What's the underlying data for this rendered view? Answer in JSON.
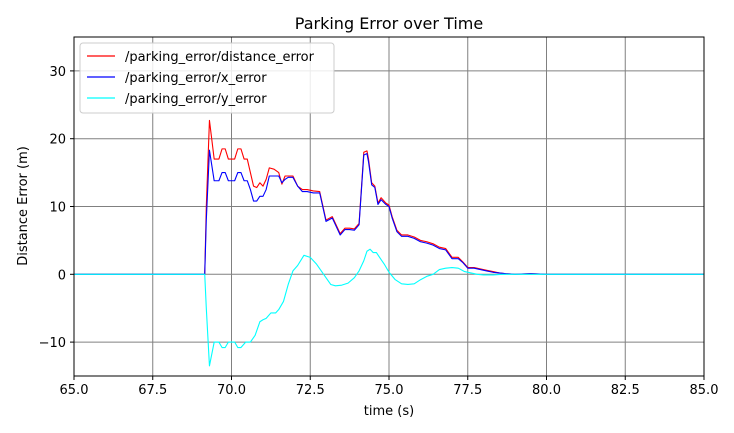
{
  "chart_data": {
    "type": "line",
    "title": "Parking Error over Time",
    "xlabel": "time (s)",
    "ylabel": "Distance Error (m)",
    "xlim": [
      65.0,
      85.0
    ],
    "ylim": [
      -15,
      35
    ],
    "xticks": [
      65.0,
      67.5,
      70.0,
      72.5,
      75.0,
      77.5,
      80.0,
      82.5,
      85.0
    ],
    "xtick_labels": [
      "65.0",
      "67.5",
      "70.0",
      "72.5",
      "75.0",
      "77.5",
      "80.0",
      "82.5",
      "85.0"
    ],
    "yticks": [
      -10,
      0,
      10,
      20,
      30
    ],
    "ytick_labels": [
      "−10",
      "0",
      "10",
      "20",
      "30"
    ],
    "grid": true,
    "legend_position": "top-left",
    "series": [
      {
        "name": "/parking_error/distance_error",
        "color": "#ff0000",
        "x": [
          65.0,
          69.15,
          69.2,
          69.3,
          69.45,
          69.6,
          69.7,
          69.8,
          69.9,
          70.0,
          70.1,
          70.2,
          70.3,
          70.4,
          70.5,
          70.6,
          70.7,
          70.8,
          70.9,
          71.0,
          71.1,
          71.2,
          71.35,
          71.5,
          71.6,
          71.7,
          71.8,
          71.95,
          72.1,
          72.25,
          72.4,
          72.6,
          72.8,
          73.0,
          73.2,
          73.3,
          73.45,
          73.6,
          73.75,
          73.9,
          74.05,
          74.2,
          74.3,
          74.35,
          74.45,
          74.55,
          74.65,
          74.75,
          74.9,
          75.0,
          75.1,
          75.25,
          75.4,
          75.6,
          75.8,
          76.0,
          76.2,
          76.4,
          76.6,
          76.8,
          77.0,
          77.2,
          77.35,
          77.5,
          77.7,
          77.9,
          78.1,
          78.3,
          78.5,
          78.7,
          79.0,
          79.5,
          80.0,
          85.0
        ],
        "y": [
          0,
          0,
          10.0,
          22.7,
          17.0,
          17.0,
          18.5,
          18.5,
          17.0,
          17.0,
          17.0,
          18.5,
          18.5,
          17.0,
          17.0,
          15.0,
          13.0,
          12.8,
          13.5,
          13.0,
          14.0,
          15.7,
          15.5,
          15.0,
          13.3,
          14.5,
          14.5,
          14.5,
          13.0,
          12.5,
          12.5,
          12.3,
          12.2,
          8.0,
          8.5,
          7.5,
          6.0,
          6.8,
          6.8,
          6.7,
          7.5,
          18.0,
          18.2,
          17.0,
          13.5,
          13.0,
          10.5,
          11.3,
          10.5,
          10.2,
          8.5,
          6.5,
          5.8,
          5.8,
          5.5,
          5.0,
          4.8,
          4.5,
          4.0,
          3.8,
          2.5,
          2.5,
          1.8,
          1.0,
          1.0,
          0.8,
          0.6,
          0.4,
          0.2,
          0.1,
          0.0,
          0.1,
          0.0,
          0
        ]
      },
      {
        "name": "/parking_error/x_error",
        "color": "#0000ff",
        "x": [
          65.0,
          69.15,
          69.2,
          69.3,
          69.45,
          69.6,
          69.7,
          69.8,
          69.9,
          70.0,
          70.1,
          70.2,
          70.3,
          70.4,
          70.5,
          70.6,
          70.7,
          70.8,
          70.9,
          71.0,
          71.1,
          71.2,
          71.35,
          71.5,
          71.6,
          71.7,
          71.8,
          71.95,
          72.1,
          72.25,
          72.4,
          72.6,
          72.8,
          73.0,
          73.2,
          73.3,
          73.45,
          73.6,
          73.75,
          73.9,
          74.05,
          74.2,
          74.3,
          74.35,
          74.45,
          74.55,
          74.65,
          74.75,
          74.9,
          75.0,
          75.1,
          75.25,
          75.4,
          75.6,
          75.8,
          76.0,
          76.2,
          76.4,
          76.6,
          76.8,
          77.0,
          77.2,
          77.35,
          77.5,
          77.7,
          77.9,
          78.1,
          78.3,
          78.5,
          78.7,
          79.0,
          79.5,
          80.0,
          85.0
        ],
        "y": [
          0,
          0,
          8.0,
          18.3,
          13.8,
          13.8,
          15.0,
          15.0,
          13.8,
          13.8,
          13.8,
          15.0,
          15.0,
          13.8,
          13.8,
          12.5,
          10.8,
          10.8,
          11.5,
          11.5,
          12.5,
          14.5,
          14.5,
          14.5,
          13.5,
          14.0,
          14.3,
          14.3,
          13.0,
          12.2,
          12.2,
          12.0,
          12.0,
          7.8,
          8.3,
          7.3,
          5.8,
          6.6,
          6.6,
          6.5,
          7.3,
          17.6,
          17.8,
          16.6,
          13.2,
          12.8,
          10.3,
          11.0,
          10.3,
          10.0,
          8.3,
          6.3,
          5.6,
          5.6,
          5.3,
          4.8,
          4.6,
          4.3,
          3.8,
          3.6,
          2.3,
          2.3,
          1.7,
          0.9,
          0.9,
          0.7,
          0.5,
          0.3,
          0.2,
          0.1,
          0.0,
          0.1,
          0.0,
          0
        ]
      },
      {
        "name": "/parking_error/y_error",
        "color": "#00ffff",
        "x": [
          65.0,
          69.15,
          69.2,
          69.3,
          69.45,
          69.6,
          69.7,
          69.8,
          69.9,
          70.0,
          70.1,
          70.2,
          70.3,
          70.45,
          70.6,
          70.75,
          70.9,
          71.0,
          71.1,
          71.25,
          71.4,
          71.5,
          71.65,
          71.8,
          71.95,
          72.1,
          72.3,
          72.5,
          72.7,
          72.85,
          73.0,
          73.15,
          73.3,
          73.5,
          73.7,
          73.9,
          74.05,
          74.2,
          74.3,
          74.4,
          74.5,
          74.6,
          74.7,
          74.85,
          75.0,
          75.2,
          75.4,
          75.6,
          75.8,
          76.0,
          76.2,
          76.4,
          76.6,
          76.8,
          77.0,
          77.2,
          77.4,
          77.6,
          77.8,
          78.0,
          78.3,
          78.6,
          79.0,
          80.0,
          85.0
        ],
        "y": [
          0,
          0,
          -5.0,
          -13.5,
          -10.0,
          -10.0,
          -10.8,
          -10.8,
          -10.0,
          -10.0,
          -10.0,
          -10.8,
          -10.8,
          -10.0,
          -10.0,
          -9.0,
          -7.0,
          -6.7,
          -6.5,
          -5.7,
          -5.7,
          -5.2,
          -4.0,
          -1.5,
          0.5,
          1.3,
          2.8,
          2.5,
          1.5,
          0.5,
          -0.5,
          -1.5,
          -1.7,
          -1.6,
          -1.3,
          -0.5,
          0.5,
          2.0,
          3.4,
          3.7,
          3.2,
          3.2,
          2.5,
          1.5,
          0.3,
          -0.8,
          -1.4,
          -1.5,
          -1.4,
          -0.8,
          -0.3,
          0.0,
          0.7,
          0.9,
          1.0,
          0.9,
          0.4,
          0.2,
          0.0,
          -0.1,
          -0.1,
          0.0,
          0.0,
          0.0,
          0
        ]
      }
    ]
  }
}
